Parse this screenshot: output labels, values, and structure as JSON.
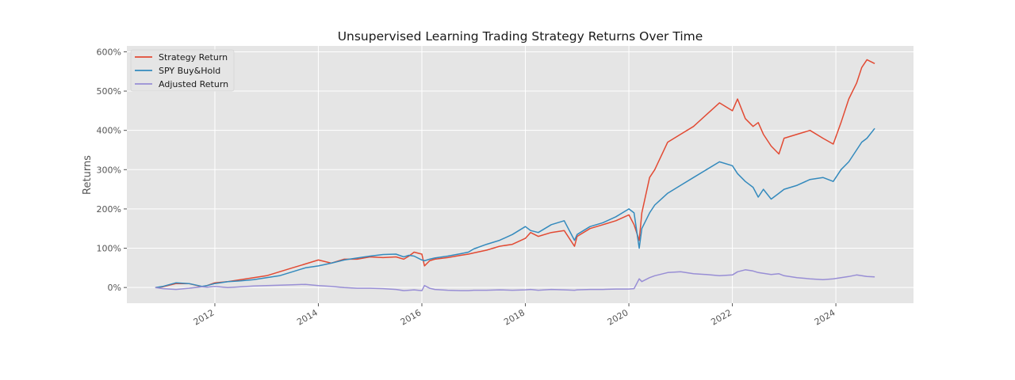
{
  "chart_data": {
    "type": "line",
    "title": "Unsupervised Learning Trading Strategy Returns Over Time",
    "xlabel": "",
    "ylabel": "Returns",
    "xlim": [
      2010.3,
      2025.5
    ],
    "ylim": [
      -0.4,
      6.15
    ],
    "x_ticks": [
      2012,
      2014,
      2016,
      2018,
      2020,
      2022,
      2024
    ],
    "x_tick_labels": [
      "2012",
      "2014",
      "2016",
      "2018",
      "2020",
      "2022",
      "2024"
    ],
    "y_ticks": [
      0,
      1,
      2,
      3,
      4,
      5,
      6
    ],
    "y_tick_labels": [
      "0%",
      "100%",
      "200%",
      "300%",
      "400%",
      "500%",
      "600%"
    ],
    "grid": true,
    "legend_position": "top-left",
    "background": "#e5e5e5",
    "x": [
      2010.85,
      2011.0,
      2011.25,
      2011.5,
      2011.75,
      2011.85,
      2012.0,
      2012.25,
      2012.5,
      2012.75,
      2013.0,
      2013.25,
      2013.5,
      2013.75,
      2014.0,
      2014.25,
      2014.5,
      2014.75,
      2015.0,
      2015.25,
      2015.5,
      2015.65,
      2015.75,
      2015.85,
      2016.0,
      2016.05,
      2016.15,
      2016.25,
      2016.5,
      2016.75,
      2016.9,
      2017.0,
      2017.25,
      2017.5,
      2017.75,
      2018.0,
      2018.1,
      2018.25,
      2018.5,
      2018.75,
      2018.95,
      2019.0,
      2019.25,
      2019.5,
      2019.75,
      2020.0,
      2020.1,
      2020.2,
      2020.25,
      2020.4,
      2020.5,
      2020.75,
      2021.0,
      2021.25,
      2021.5,
      2021.75,
      2022.0,
      2022.1,
      2022.25,
      2022.4,
      2022.5,
      2022.6,
      2022.75,
      2022.9,
      2023.0,
      2023.25,
      2023.5,
      2023.75,
      2023.95,
      2024.1,
      2024.25,
      2024.4,
      2024.5,
      2024.6,
      2024.75
    ],
    "series": [
      {
        "name": "Strategy Return",
        "color": "#e24a33",
        "values": [
          0.0,
          0.02,
          0.1,
          0.1,
          0.02,
          0.05,
          0.12,
          0.15,
          0.2,
          0.25,
          0.3,
          0.4,
          0.5,
          0.6,
          0.7,
          0.62,
          0.72,
          0.72,
          0.78,
          0.76,
          0.78,
          0.72,
          0.8,
          0.9,
          0.85,
          0.55,
          0.68,
          0.72,
          0.76,
          0.82,
          0.85,
          0.88,
          0.95,
          1.05,
          1.1,
          1.25,
          1.4,
          1.3,
          1.4,
          1.45,
          1.05,
          1.3,
          1.5,
          1.6,
          1.7,
          1.85,
          1.6,
          1.2,
          1.9,
          2.8,
          3.0,
          3.7,
          3.9,
          4.1,
          4.4,
          4.7,
          4.5,
          4.8,
          4.3,
          4.1,
          4.2,
          3.9,
          3.6,
          3.4,
          3.8,
          3.9,
          4.0,
          3.8,
          3.65,
          4.2,
          4.8,
          5.2,
          5.6,
          5.8,
          5.7
        ]
      },
      {
        "name": "SPY Buy&Hold",
        "color": "#348abd",
        "values": [
          0.0,
          0.03,
          0.12,
          0.1,
          0.03,
          0.05,
          0.1,
          0.15,
          0.17,
          0.2,
          0.25,
          0.3,
          0.4,
          0.5,
          0.55,
          0.62,
          0.7,
          0.75,
          0.8,
          0.84,
          0.85,
          0.78,
          0.82,
          0.8,
          0.7,
          0.68,
          0.72,
          0.75,
          0.8,
          0.86,
          0.9,
          0.98,
          1.1,
          1.2,
          1.35,
          1.55,
          1.45,
          1.4,
          1.6,
          1.7,
          1.2,
          1.35,
          1.55,
          1.65,
          1.8,
          2.0,
          1.9,
          1.0,
          1.5,
          1.9,
          2.1,
          2.4,
          2.6,
          2.8,
          3.0,
          3.2,
          3.1,
          2.9,
          2.7,
          2.55,
          2.3,
          2.5,
          2.25,
          2.4,
          2.5,
          2.6,
          2.75,
          2.8,
          2.7,
          3.0,
          3.2,
          3.5,
          3.7,
          3.8,
          4.05
        ]
      },
      {
        "name": "Adjusted Return",
        "color": "#988ed5",
        "values": [
          0.0,
          -0.03,
          -0.05,
          -0.02,
          0.02,
          0.01,
          0.03,
          0.0,
          0.02,
          0.04,
          0.05,
          0.06,
          0.07,
          0.08,
          0.05,
          0.03,
          0.0,
          -0.02,
          -0.02,
          -0.03,
          -0.05,
          -0.08,
          -0.07,
          -0.06,
          -0.08,
          0.05,
          -0.02,
          -0.05,
          -0.07,
          -0.08,
          -0.08,
          -0.07,
          -0.07,
          -0.06,
          -0.07,
          -0.06,
          -0.05,
          -0.07,
          -0.05,
          -0.06,
          -0.07,
          -0.06,
          -0.05,
          -0.05,
          -0.04,
          -0.04,
          -0.03,
          0.22,
          0.15,
          0.25,
          0.3,
          0.38,
          0.4,
          0.35,
          0.33,
          0.3,
          0.32,
          0.4,
          0.45,
          0.42,
          0.38,
          0.36,
          0.33,
          0.35,
          0.3,
          0.25,
          0.22,
          0.2,
          0.22,
          0.25,
          0.28,
          0.32,
          0.3,
          0.28,
          0.27
        ]
      }
    ]
  }
}
